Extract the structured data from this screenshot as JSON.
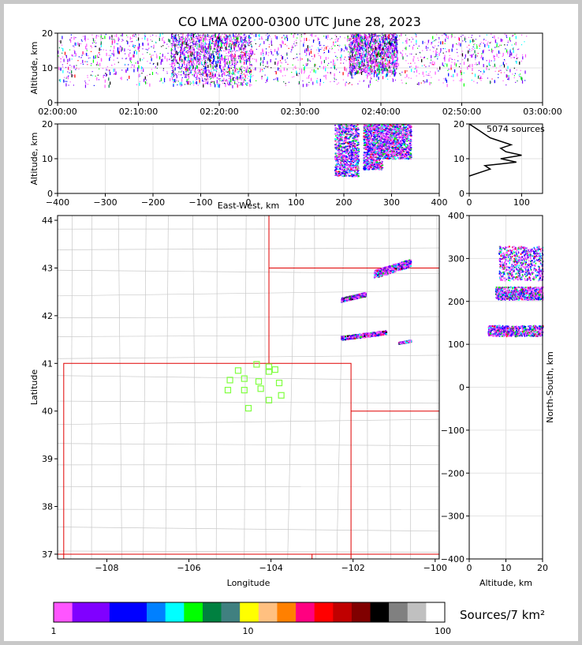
{
  "title": "CO LMA 0200-0300 UTC June 28, 2023",
  "colorbar_label": "Sources/7 km²",
  "source_count": "5074 sources",
  "chart_data": [
    {
      "id": "altitude-time",
      "type": "scatter",
      "xlabel": "",
      "ylabel": "Altitude, km",
      "xticks": [
        "02:00:00",
        "02:10:00",
        "02:20:00",
        "02:30:00",
        "02:40:00",
        "02:50:00",
        "03:00:00"
      ],
      "xlim": [
        0,
        60
      ],
      "ylim": [
        0,
        20
      ],
      "yticks": [
        0,
        10,
        20
      ],
      "grid": true,
      "clusters": [
        {
          "x": [
            0,
            58
          ],
          "y": [
            5,
            20
          ],
          "density": "moderate"
        },
        {
          "x": [
            14,
            24
          ],
          "y": [
            5,
            20
          ],
          "density": "high"
        },
        {
          "x": [
            36,
            42
          ],
          "y": [
            8,
            20
          ],
          "density": "high"
        }
      ]
    },
    {
      "id": "altitude-eastwest",
      "type": "heatmap",
      "xlabel": "East-West, km",
      "ylabel": "Altitude, km",
      "xlim": [
        -400,
        400
      ],
      "ylim": [
        0,
        20
      ],
      "xticks": [
        -400,
        -300,
        -200,
        -100,
        0,
        100,
        200,
        300,
        400
      ],
      "yticks": [
        0,
        10,
        20
      ],
      "grid": true,
      "clusters": [
        {
          "x": [
            180,
            230
          ],
          "y": [
            5,
            20
          ]
        },
        {
          "x": [
            240,
            280
          ],
          "y": [
            7,
            20
          ]
        },
        {
          "x": [
            280,
            340
          ],
          "y": [
            10,
            20
          ]
        }
      ]
    },
    {
      "id": "altitude-histogram",
      "type": "line",
      "xlabel": "",
      "ylabel": "",
      "xlim": [
        0,
        140
      ],
      "ylim": [
        0,
        20
      ],
      "xticks": [
        0,
        100
      ],
      "yticks": [
        0,
        10,
        20
      ],
      "grid": true,
      "x": [
        0,
        20,
        40,
        30,
        60,
        90,
        60,
        100,
        70,
        60,
        80,
        60,
        40,
        30,
        20,
        10,
        0
      ],
      "y": [
        5,
        6,
        7,
        8,
        8.5,
        9,
        10,
        11,
        12,
        13,
        14,
        15,
        16,
        17,
        18,
        19,
        20
      ]
    },
    {
      "id": "plan-view",
      "type": "heatmap",
      "xlabel": "Longitude",
      "ylabel": "Latitude",
      "xlim": [
        -109.2,
        -99.9
      ],
      "ylim": [
        36.9,
        44.1
      ],
      "xticks": [
        -108,
        -106,
        -104,
        -102,
        -100
      ],
      "yticks": [
        37,
        38,
        39,
        40,
        41,
        42,
        43,
        44
      ],
      "clusters": [
        {
          "lon": [
            -102.3,
            -101.7
          ],
          "lat": [
            42.3,
            42.5
          ]
        },
        {
          "lon": [
            -102.3,
            -101.2
          ],
          "lat": [
            41.5,
            41.7
          ]
        },
        {
          "lon": [
            -101.5,
            -100.6
          ],
          "lat": [
            42.8,
            43.2
          ]
        },
        {
          "lon": [
            -100.9,
            -100.6
          ],
          "lat": [
            41.42,
            41.5
          ]
        }
      ],
      "stations": [
        {
          "lon": -105.0,
          "lat": 40.65
        },
        {
          "lon": -104.8,
          "lat": 40.85
        },
        {
          "lon": -104.65,
          "lat": 40.68
        },
        {
          "lon": -104.35,
          "lat": 40.98
        },
        {
          "lon": -104.05,
          "lat": 40.93
        },
        {
          "lon": -104.05,
          "lat": 40.83
        },
        {
          "lon": -103.9,
          "lat": 40.87
        },
        {
          "lon": -104.3,
          "lat": 40.62
        },
        {
          "lon": -103.8,
          "lat": 40.59
        },
        {
          "lon": -105.05,
          "lat": 40.44
        },
        {
          "lon": -104.65,
          "lat": 40.44
        },
        {
          "lon": -104.25,
          "lat": 40.47
        },
        {
          "lon": -103.75,
          "lat": 40.33
        },
        {
          "lon": -104.05,
          "lat": 40.23
        },
        {
          "lon": -104.55,
          "lat": 40.06
        }
      ]
    },
    {
      "id": "altitude-northsouth",
      "type": "heatmap",
      "xlabel": "Altitude, km",
      "ylabel": "North-South, km",
      "xlim": [
        0,
        20
      ],
      "ylim": [
        -400,
        400
      ],
      "xticks": [
        0,
        10,
        20
      ],
      "yticks": [
        -400,
        -300,
        -200,
        -100,
        0,
        100,
        200,
        300,
        400
      ],
      "grid": true,
      "clusters": [
        {
          "x": [
            8,
            20
          ],
          "y": [
            250,
            330
          ]
        },
        {
          "x": [
            7,
            20
          ],
          "y": [
            205,
            235
          ]
        },
        {
          "x": [
            5,
            20
          ],
          "y": [
            120,
            145
          ]
        }
      ]
    }
  ],
  "colorbar": {
    "ticks": [
      "1",
      "10",
      "100"
    ],
    "colors": [
      "#ff55ff",
      "#8000ff",
      "#8000ff",
      "#0000ff",
      "#0000ff",
      "#0080ff",
      "#00ffff",
      "#00ff00",
      "#008040",
      "#408080",
      "#ffff00",
      "#ffc080",
      "#ff8000",
      "#ff0080",
      "#ff0000",
      "#c00000",
      "#800000",
      "#000000",
      "#808080",
      "#c0c0c0",
      "#ffffff"
    ]
  }
}
